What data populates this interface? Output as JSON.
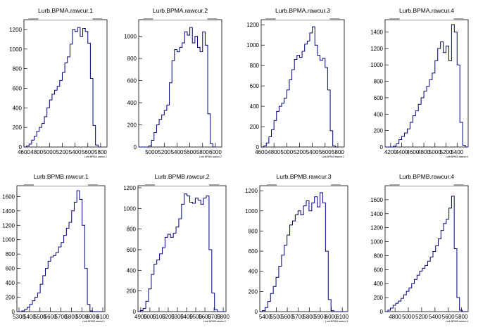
{
  "chart_data": [
    {
      "type": "histogram",
      "title": "Lurb.BPMA.rawcur.1",
      "xlabel": "Lurb.BPMA.rawcur.1",
      "xlim": [
        4600,
        5900
      ],
      "ylim": [
        0,
        1300
      ],
      "x_ticks": [
        4600,
        4800,
        5000,
        5200,
        5400,
        5600,
        5800
      ],
      "y_ticks": [
        0,
        200,
        400,
        600,
        800,
        1000,
        1200
      ],
      "series": [
        {
          "x": [
            4620,
            4660,
            4700,
            4740,
            4780,
            4820,
            4860,
            4900,
            4940,
            4980,
            5020,
            5060,
            5100,
            5140,
            5180,
            5220,
            5260,
            5300,
            5340,
            5380,
            5420,
            5460,
            5500,
            5540,
            5580,
            5620,
            5660,
            5700,
            5740,
            5780
          ],
          "values": [
            0,
            10,
            30,
            70,
            110,
            160,
            200,
            240,
            310,
            400,
            480,
            540,
            580,
            620,
            680,
            760,
            860,
            920,
            1050,
            1200,
            1180,
            1220,
            1130,
            1210,
            1180,
            1060,
            700,
            220,
            20,
            0
          ]
        }
      ]
    },
    {
      "type": "histogram",
      "title": "Lurb.BPMA.rawcur.2",
      "xlabel": "Lurb.BPMA.rawcur.2",
      "xlim": [
        4800,
        6100
      ],
      "ylim": [
        0,
        1150
      ],
      "x_ticks": [
        5000,
        5200,
        5400,
        5600,
        5800,
        6000
      ],
      "y_ticks": [
        0,
        200,
        400,
        600,
        800,
        1000
      ],
      "series": [
        {
          "x": [
            4820,
            4860,
            4900,
            4940,
            4980,
            5020,
            5060,
            5100,
            5140,
            5180,
            5220,
            5260,
            5300,
            5340,
            5380,
            5420,
            5460,
            5500,
            5540,
            5580,
            5620,
            5660,
            5700,
            5740,
            5780,
            5820,
            5860,
            5900,
            5940,
            5980
          ],
          "values": [
            0,
            0,
            0,
            0,
            10,
            60,
            130,
            200,
            250,
            290,
            330,
            380,
            580,
            780,
            880,
            860,
            900,
            940,
            1040,
            1010,
            1080,
            940,
            1000,
            900,
            860,
            1040,
            920,
            300,
            30,
            0
          ]
        }
      ]
    },
    {
      "type": "histogram",
      "title": "Lurb.BPMA.rawcur.3",
      "xlabel": "Lurb.BPMA.rawcur.3",
      "xlim": [
        4600,
        5900
      ],
      "ylim": [
        0,
        1250
      ],
      "x_ticks": [
        4600,
        4800,
        5000,
        5200,
        5400,
        5600,
        5800
      ],
      "y_ticks": [
        0,
        200,
        400,
        600,
        800,
        1000,
        1200
      ],
      "series": [
        {
          "x": [
            4620,
            4660,
            4700,
            4740,
            4780,
            4820,
            4860,
            4900,
            4940,
            4980,
            5020,
            5060,
            5100,
            5140,
            5180,
            5220,
            5260,
            5300,
            5340,
            5380,
            5420,
            5460,
            5500,
            5540,
            5580,
            5620,
            5660,
            5700,
            5740,
            5780
          ],
          "values": [
            0,
            10,
            40,
            100,
            170,
            260,
            350,
            400,
            430,
            480,
            560,
            660,
            760,
            860,
            900,
            880,
            940,
            1010,
            1040,
            1120,
            1180,
            1000,
            900,
            850,
            870,
            780,
            560,
            160,
            10,
            0
          ]
        }
      ]
    },
    {
      "type": "histogram",
      "title": "Lurb.BPMA.rawcur.4",
      "xlabel": "Lurb.BPMA.rawcur.4",
      "xlim": [
        4100,
        5600
      ],
      "ylim": [
        0,
        1550
      ],
      "x_ticks": [
        4200,
        4400,
        4600,
        4800,
        5000,
        5200,
        5400
      ],
      "y_ticks": [
        0,
        200,
        400,
        600,
        800,
        1000,
        1200,
        1400
      ],
      "series": [
        {
          "x": [
            4125,
            4175,
            4225,
            4275,
            4325,
            4375,
            4425,
            4475,
            4525,
            4575,
            4625,
            4675,
            4725,
            4775,
            4825,
            4875,
            4925,
            4975,
            5025,
            5075,
            5125,
            5175,
            5225,
            5275,
            5325,
            5375,
            5425,
            5475,
            5525,
            5575
          ],
          "values": [
            0,
            0,
            0,
            10,
            40,
            90,
            130,
            170,
            220,
            300,
            380,
            440,
            520,
            600,
            680,
            740,
            820,
            900,
            1050,
            1200,
            1280,
            1150,
            1230,
            1050,
            1490,
            1400,
            1000,
            300,
            20,
            0
          ]
        }
      ]
    },
    {
      "type": "histogram",
      "title": "Lurb.BPMB.rawcur.1",
      "xlabel": "Lurb.BPMB.rawcur.1",
      "xlim": [
        5280,
        6120
      ],
      "ylim": [
        0,
        1750
      ],
      "x_ticks": [
        5300,
        5400,
        5500,
        5600,
        5700,
        5800,
        5900,
        6000,
        6100
      ],
      "y_ticks": [
        0,
        200,
        400,
        600,
        800,
        1000,
        1200,
        1400,
        1600
      ],
      "series": [
        {
          "x": [
            5290,
            5315,
            5340,
            5365,
            5390,
            5415,
            5440,
            5465,
            5490,
            5515,
            5540,
            5565,
            5590,
            5615,
            5640,
            5665,
            5690,
            5715,
            5740,
            5765,
            5790,
            5815,
            5840,
            5865,
            5890,
            5915,
            5940,
            5965,
            5990,
            6015,
            6040,
            6065,
            6090
          ],
          "values": [
            0,
            0,
            10,
            30,
            60,
            100,
            150,
            200,
            260,
            380,
            500,
            600,
            700,
            760,
            780,
            820,
            900,
            960,
            1060,
            1160,
            1240,
            1400,
            1520,
            1680,
            1560,
            1200,
            600,
            100,
            10,
            0,
            0,
            0,
            0
          ]
        }
      ]
    },
    {
      "type": "histogram",
      "title": "Lurb.BPMB.rawcur.2",
      "xlabel": "Lurb.BPMB.rawcur.2",
      "xlim": [
        4870,
        5830
      ],
      "ylim": [
        0,
        1220
      ],
      "x_ticks": [
        4900,
        5000,
        5100,
        5200,
        5300,
        5400,
        5500,
        5600,
        5700,
        5800
      ],
      "y_ticks": [
        0,
        200,
        400,
        600,
        800,
        1000,
        1200
      ],
      "series": [
        {
          "x": [
            4880,
            4910,
            4940,
            4970,
            5000,
            5030,
            5060,
            5090,
            5120,
            5150,
            5180,
            5210,
            5240,
            5270,
            5300,
            5330,
            5360,
            5390,
            5420,
            5450,
            5480,
            5510,
            5540,
            5570,
            5600,
            5630,
            5660,
            5690,
            5720,
            5750,
            5780,
            5810
          ],
          "values": [
            0,
            10,
            30,
            100,
            220,
            360,
            460,
            500,
            560,
            620,
            720,
            750,
            720,
            760,
            820,
            900,
            1040,
            1140,
            1120,
            1060,
            1050,
            1100,
            1080,
            1040,
            1100,
            1120,
            600,
            180,
            20,
            0,
            0,
            0
          ]
        }
      ]
    },
    {
      "type": "histogram",
      "title": "Lurb.BPMB.rawcur.3",
      "xlabel": "Lurb.BPMB.rawcur.3",
      "xlim": [
        5350,
        6150
      ],
      "ylim": [
        0,
        1250
      ],
      "x_ticks": [
        5400,
        5500,
        5600,
        5700,
        5800,
        5900,
        6000,
        6100
      ],
      "y_ticks": [
        0,
        200,
        400,
        600,
        800,
        1000,
        1200
      ],
      "series": [
        {
          "x": [
            5360,
            5385,
            5410,
            5435,
            5460,
            5485,
            5510,
            5535,
            5560,
            5585,
            5610,
            5635,
            5660,
            5685,
            5710,
            5735,
            5760,
            5785,
            5810,
            5835,
            5860,
            5885,
            5910,
            5935,
            5960,
            5985,
            6010,
            6035,
            6060,
            6085,
            6110,
            6135
          ],
          "values": [
            0,
            10,
            40,
            100,
            180,
            250,
            340,
            450,
            560,
            660,
            760,
            860,
            900,
            960,
            1000,
            960,
            1050,
            1100,
            1000,
            1080,
            1140,
            1040,
            1180,
            1080,
            600,
            120,
            10,
            0,
            0,
            0,
            0,
            0
          ]
        }
      ]
    },
    {
      "type": "histogram",
      "title": "Lurb.BPMB.rawcur.4",
      "xlabel": "Lurb.BPMB.rawcur.4",
      "xlim": [
        4650,
        5900
      ],
      "ylim": [
        0,
        1800
      ],
      "x_ticks": [
        4800,
        5000,
        5200,
        5400,
        5600,
        5800
      ],
      "y_ticks": [
        0,
        200,
        400,
        600,
        800,
        1000,
        1200,
        1400,
        1600
      ],
      "series": [
        {
          "x": [
            4670,
            4710,
            4750,
            4790,
            4830,
            4870,
            4910,
            4950,
            4990,
            5030,
            5070,
            5110,
            5150,
            5190,
            5230,
            5270,
            5310,
            5350,
            5390,
            5430,
            5470,
            5510,
            5550,
            5590,
            5630,
            5670,
            5710,
            5750,
            5790,
            5830,
            5870
          ],
          "values": [
            0,
            20,
            50,
            90,
            120,
            150,
            190,
            240,
            290,
            340,
            400,
            460,
            520,
            580,
            620,
            660,
            720,
            780,
            860,
            940,
            1040,
            1160,
            1260,
            1320,
            1480,
            1650,
            900,
            200,
            20,
            0,
            0
          ]
        }
      ]
    }
  ]
}
